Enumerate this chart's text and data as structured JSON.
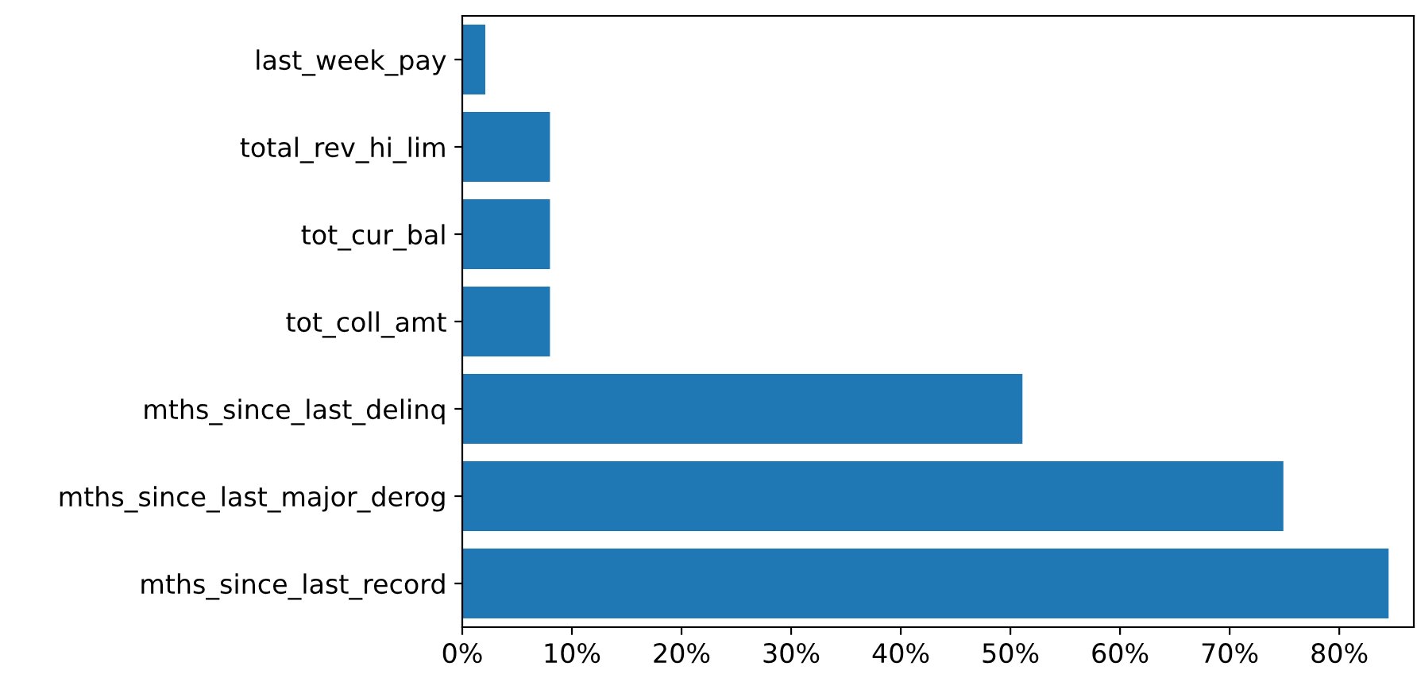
{
  "chart_data": {
    "type": "bar",
    "orientation": "horizontal",
    "categories": [
      "last_week_pay",
      "total_rev_hi_lim",
      "tot_cur_bal",
      "tot_coll_amt",
      "mths_since_last_delinq",
      "mths_since_last_major_derog",
      "mths_since_last_record"
    ],
    "values": [
      2.1,
      8.0,
      8.0,
      8.0,
      51.1,
      74.9,
      84.5
    ],
    "color": "#1f77b4",
    "xlim": [
      0,
      86.8
    ],
    "xticks": [
      {
        "value": 0,
        "label": "0%"
      },
      {
        "value": 10,
        "label": "10%"
      },
      {
        "value": 20,
        "label": "20%"
      },
      {
        "value": 30,
        "label": "30%"
      },
      {
        "value": 40,
        "label": "40%"
      },
      {
        "value": 50,
        "label": "50%"
      },
      {
        "value": 60,
        "label": "60%"
      },
      {
        "value": 70,
        "label": "70%"
      },
      {
        "value": 80,
        "label": "80%"
      }
    ],
    "grid": false,
    "legend": false
  }
}
